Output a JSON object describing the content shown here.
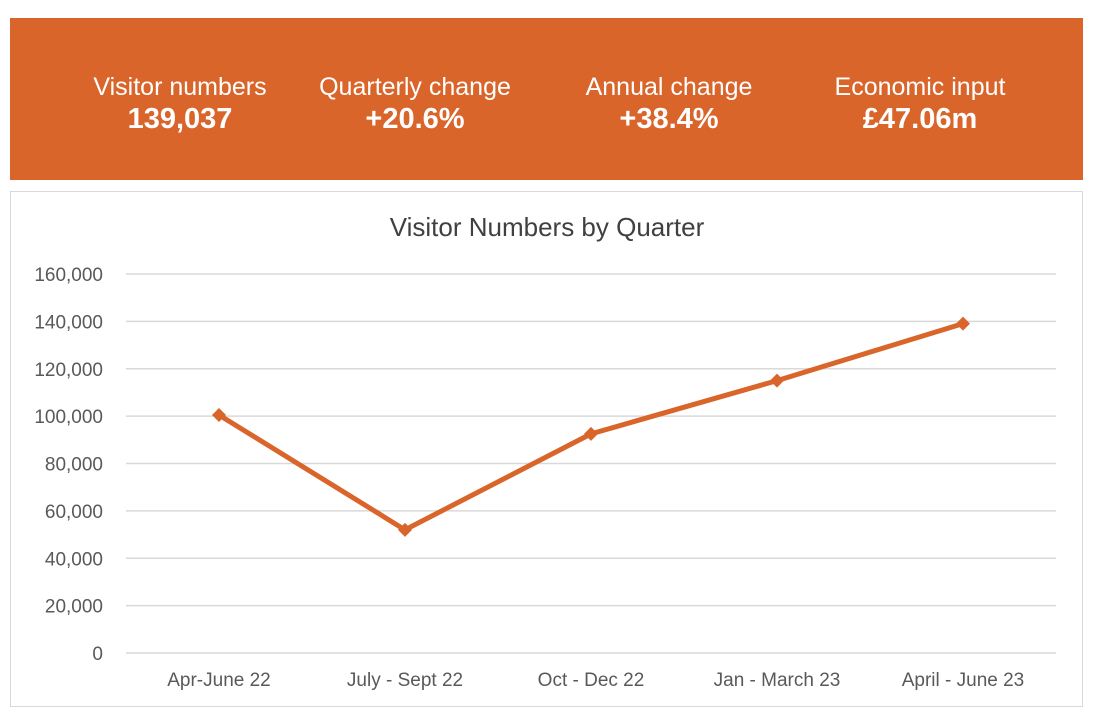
{
  "banner": {
    "color": "#d9652b",
    "kpis": [
      {
        "label": "Visitor numbers",
        "value": "139,037"
      },
      {
        "label": "Quarterly change",
        "value": "+20.6%"
      },
      {
        "label": "Annual change",
        "value": "+38.4%"
      },
      {
        "label": "Economic input",
        "value": "£47.06m"
      }
    ]
  },
  "chart_data": {
    "type": "line",
    "title": "Visitor Numbers by Quarter",
    "categories": [
      "Apr-June 22",
      "July - Sept 22",
      "Oct - Dec 22",
      "Jan - March 23",
      "April - June 23"
    ],
    "series": [
      {
        "values": [
          100500,
          52000,
          92500,
          115000,
          139037
        ],
        "color": "#d9652b",
        "marker": "diamond"
      }
    ],
    "ylim": [
      0,
      160000
    ],
    "yticks": [
      "0",
      "20,000",
      "40,000",
      "60,000",
      "80,000",
      "100,000",
      "120,000",
      "140,000",
      "160,000"
    ],
    "ytick_values": [
      0,
      20000,
      40000,
      60000,
      80000,
      100000,
      120000,
      140000,
      160000
    ],
    "grid": true,
    "legend": "none"
  }
}
